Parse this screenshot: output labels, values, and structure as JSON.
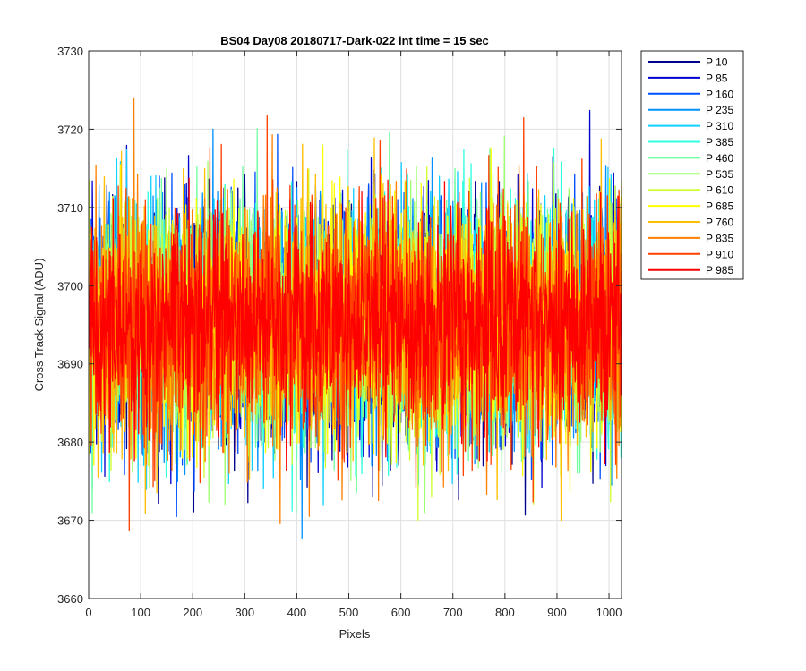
{
  "chart_data": {
    "type": "line",
    "title": "BS04 Day08 20180717-Dark-022 int time = 15 sec",
    "xlabel": "Pixels",
    "ylabel": "Cross Track Signal (ADU)",
    "xlim": [
      0,
      1024
    ],
    "ylim": [
      3660,
      3730
    ],
    "x_ticks": [
      0,
      100,
      200,
      300,
      400,
      500,
      600,
      700,
      800,
      900,
      1000
    ],
    "y_ticks": [
      3660,
      3670,
      3680,
      3690,
      3700,
      3710,
      3720,
      3730
    ],
    "grid": true,
    "legend_position": "outside-right-top",
    "series": [
      {
        "name": "P 10",
        "color": "#00008f",
        "mean": 3695,
        "typical_range": [
          3678,
          3712
        ],
        "min": 3665,
        "max": 3723
      },
      {
        "name": "P 85",
        "color": "#0000cf",
        "mean": 3695,
        "typical_range": [
          3678,
          3712
        ],
        "min": 3668,
        "max": 3724
      },
      {
        "name": "P 160",
        "color": "#0050ff",
        "mean": 3695,
        "typical_range": [
          3678,
          3712
        ],
        "min": 3669,
        "max": 3721
      },
      {
        "name": "P 235",
        "color": "#0090ff",
        "mean": 3695,
        "typical_range": [
          3678,
          3712
        ],
        "min": 3665,
        "max": 3720
      },
      {
        "name": "P 310",
        "color": "#10d0ff",
        "mean": 3695,
        "typical_range": [
          3678,
          3712
        ],
        "min": 3670,
        "max": 3720
      },
      {
        "name": "P 385",
        "color": "#30ffe0",
        "mean": 3695,
        "typical_range": [
          3678,
          3712
        ],
        "min": 3671,
        "max": 3720
      },
      {
        "name": "P 460",
        "color": "#70ffa0",
        "mean": 3695,
        "typical_range": [
          3678,
          3712
        ],
        "min": 3671,
        "max": 3721
      },
      {
        "name": "P 535",
        "color": "#a0ff70",
        "mean": 3695,
        "typical_range": [
          3678,
          3712
        ],
        "min": 3671,
        "max": 3722
      },
      {
        "name": "P 610",
        "color": "#d0ff30",
        "mean": 3695,
        "typical_range": [
          3678,
          3712
        ],
        "min": 3670,
        "max": 3721
      },
      {
        "name": "P 685",
        "color": "#ffff00",
        "mean": 3695,
        "typical_range": [
          3678,
          3712
        ],
        "min": 3666,
        "max": 3722
      },
      {
        "name": "P 760",
        "color": "#ffbf00",
        "mean": 3695,
        "typical_range": [
          3678,
          3712
        ],
        "min": 3670,
        "max": 3722
      },
      {
        "name": "P 835",
        "color": "#ff8000",
        "mean": 3695,
        "typical_range": [
          3678,
          3712
        ],
        "min": 3664,
        "max": 3724
      },
      {
        "name": "P 910",
        "color": "#ff4000",
        "mean": 3695,
        "typical_range": [
          3678,
          3712
        ],
        "min": 3663,
        "max": 3722
      },
      {
        "name": "P 985",
        "color": "#ff0000",
        "mean": 3695,
        "typical_range": [
          3680,
          3710
        ],
        "min": 3675,
        "max": 3716
      }
    ]
  }
}
